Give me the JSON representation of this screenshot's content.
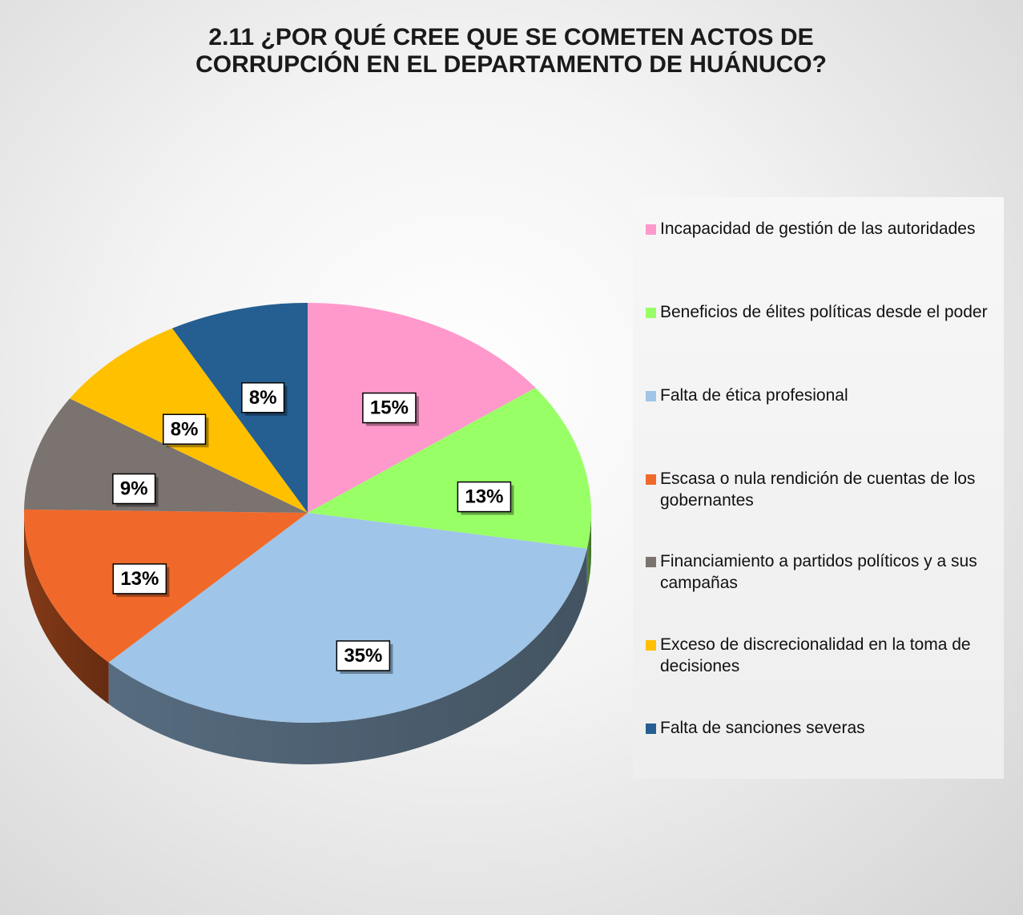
{
  "chart_data": {
    "type": "pie",
    "title": "2.11 ¿POR QUÉ CREE QUE SE COMETEN ACTOS DE CORRUPCIÓN EN EL DEPARTAMENTO DE HUÁNUCO?",
    "categories": [
      "Incapacidad de gestión de las autoridades",
      "Beneficios de élites políticas desde el poder",
      "Falta de ética profesional",
      "Escasa o nula rendición de cuentas de los gobernantes",
      "Financiamiento a partidos políticos y a sus campañas",
      "Exceso de discrecionalidad en la toma de decisiones",
      "Falta de sanciones severas"
    ],
    "values": [
      15,
      13,
      35,
      13,
      9,
      8,
      8
    ],
    "value_labels": [
      "15%",
      "13%",
      "35%",
      "13%",
      "9%",
      "8%",
      "8%"
    ],
    "colors": [
      "#ff99cc",
      "#99ff66",
      "#9fc5e8",
      "#f0692a",
      "#7a7370",
      "#ffc000",
      "#255e91"
    ]
  }
}
